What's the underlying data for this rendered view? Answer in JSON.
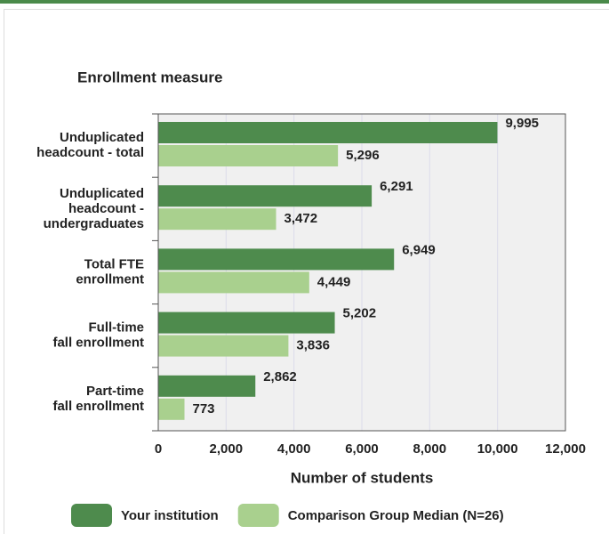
{
  "chart_data": {
    "type": "barh",
    "y_axis_title": "Enrollment measure",
    "x_axis_title": "Number of students",
    "categories": [
      "Unduplicated\nheadcount - total",
      "Unduplicated\nheadcount -\nundergraduates",
      "Total FTE\nenrollment",
      "Full-time\nfall enrollment",
      "Part-time\nfall enrollment"
    ],
    "series": [
      {
        "name": "Your institution",
        "color": "#4e8b4d",
        "values": [
          9995,
          6291,
          6949,
          5202,
          2862
        ],
        "value_labels": [
          "9,995",
          "6,291",
          "6,949",
          "5,202",
          "2,862"
        ]
      },
      {
        "name": "Comparison Group Median (N=26)",
        "color": "#a9d08e",
        "values": [
          5296,
          3472,
          4449,
          3836,
          773
        ],
        "value_labels": [
          "5,296",
          "3,472",
          "4,449",
          "3,836",
          "773"
        ]
      }
    ],
    "xlim": [
      0,
      12000
    ],
    "xticks": [
      0,
      {
        "value": 2000,
        "label": "2,000"
      },
      {
        "value": 4000,
        "label": "4,000"
      },
      {
        "value": 6000,
        "label": "6,000"
      },
      {
        "value": 8000,
        "label": "8,000"
      },
      {
        "value": 10000,
        "label": "10,000"
      },
      {
        "value": 12000,
        "label": "12,000"
      }
    ],
    "grid": true
  }
}
